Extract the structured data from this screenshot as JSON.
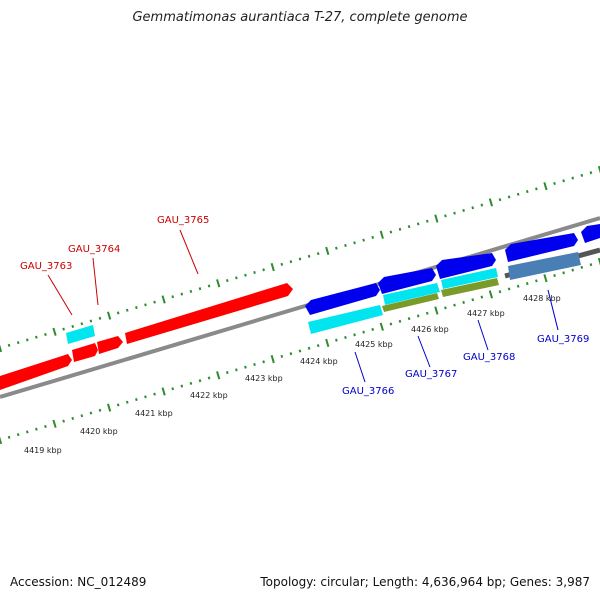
{
  "title": "Gemmatimonas aurantiaca T-27, complete genome",
  "footer": {
    "accession": "Accession: NC_012489",
    "summary": "Topology: circular; Length: 4,636,964 bp; Genes: 3,987"
  },
  "colors": {
    "forward_gene": "#ff0000",
    "reverse_gene": "#0000ee",
    "rna_feature": "#00e5f0",
    "olive_feature": "#7a9a2a",
    "steel_feature": "#4a7fb5",
    "tick": "#2e8b2e",
    "backbone": "#8a8a8a"
  },
  "scale_labels": [
    "4419 kbp",
    "4420 kbp",
    "4421 kbp",
    "4422 kbp",
    "4423 kbp",
    "4424 kbp",
    "4425 kbp",
    "4426 kbp",
    "4427 kbp",
    "4428 kbp"
  ],
  "gene_labels": {
    "forward": [
      "GAU_3763",
      "GAU_3764",
      "GAU_3765"
    ],
    "reverse": [
      "GAU_3766",
      "GAU_3767",
      "GAU_3768",
      "GAU_3769"
    ]
  }
}
